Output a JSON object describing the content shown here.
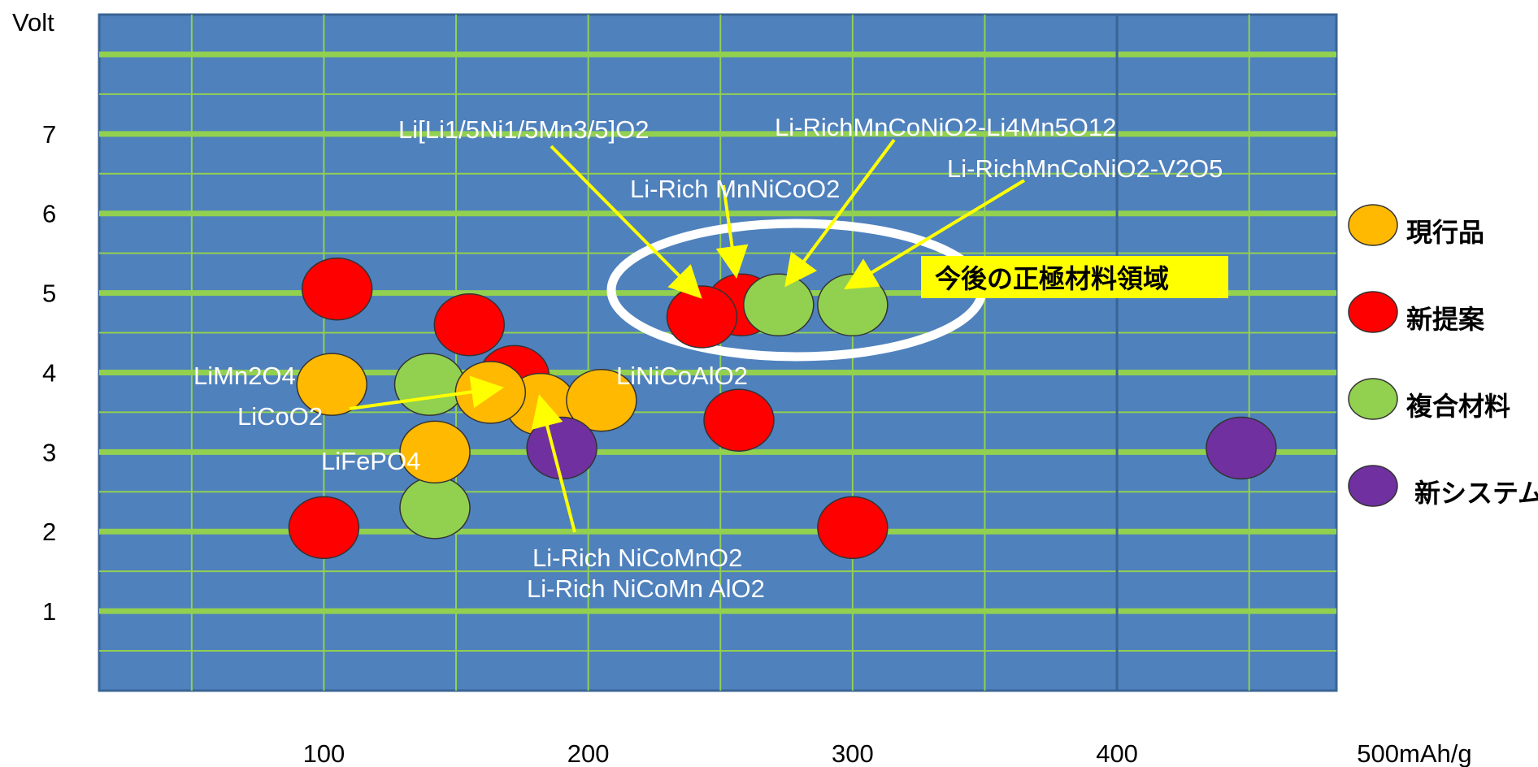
{
  "chart_data": {
    "type": "scatter",
    "ylabel": "Volt",
    "xlabel": "",
    "x_ticks": [
      "100",
      "200",
      "300",
      "400",
      "500mAh/g"
    ],
    "y_ticks": [
      "1",
      "2",
      "3",
      "4",
      "5",
      "6",
      "7"
    ],
    "xlim": [
      15,
      483
    ],
    "ylim": [
      0,
      8.5
    ],
    "grid": true,
    "legend_position": "right",
    "legend": [
      {
        "name": "現行品",
        "color": "#FFB900"
      },
      {
        "name": "新提案",
        "color": "#FF0000"
      },
      {
        "name": "複合材料",
        "color": "#92D050"
      },
      {
        "name": "新システム",
        "color": "#7030A0"
      }
    ],
    "points": [
      {
        "x": 105,
        "y": 5.05,
        "group": "新提案"
      },
      {
        "x": 100,
        "y": 2.05,
        "group": "新提案"
      },
      {
        "x": 155,
        "y": 4.6,
        "group": "新提案"
      },
      {
        "x": 172,
        "y": 3.95,
        "group": "新提案"
      },
      {
        "x": 257,
        "y": 3.4,
        "group": "新提案"
      },
      {
        "x": 300,
        "y": 2.05,
        "group": "新提案"
      },
      {
        "x": 258,
        "y": 4.85,
        "group": "新提案"
      },
      {
        "x": 243,
        "y": 4.7,
        "group": "新提案"
      },
      {
        "x": 272,
        "y": 4.85,
        "group": "複合材料"
      },
      {
        "x": 300,
        "y": 4.85,
        "group": "複合材料"
      },
      {
        "x": 140,
        "y": 3.85,
        "group": "複合材料"
      },
      {
        "x": 142,
        "y": 2.3,
        "group": "複合材料"
      },
      {
        "x": 103,
        "y": 3.85,
        "group": "現行品"
      },
      {
        "x": 182,
        "y": 3.6,
        "group": "現行品"
      },
      {
        "x": 205,
        "y": 3.65,
        "group": "現行品"
      },
      {
        "x": 142,
        "y": 3.0,
        "group": "現行品"
      },
      {
        "x": 163,
        "y": 3.75,
        "group": "現行品"
      },
      {
        "x": 190,
        "y": 3.05,
        "group": "新システム"
      },
      {
        "x": 447,
        "y": 3.05,
        "group": "新システム"
      }
    ],
    "annotations": [
      {
        "text": "LiMn2O4"
      },
      {
        "text": "LiCoO2"
      },
      {
        "text": "LiFePO4"
      },
      {
        "text": "LiNiCoAlO2"
      },
      {
        "text": "Li[Li1/5Ni1/5Mn3/5]O2"
      },
      {
        "text": "Li-Rich MnNiCoO2"
      },
      {
        "text": "Li-RichMnCoNiO2-Li4Mn5O12"
      },
      {
        "text": "Li-RichMnCoNiO2-V2O5"
      },
      {
        "text": "Li-Rich NiCoMnO2"
      },
      {
        "text": "Li-Rich NiCoMn AlO2"
      }
    ],
    "region_label": "今後の正極材料領域"
  },
  "colors": {
    "plot_background": "#4F81BD",
    "grid": "#92D050",
    "arrow": "#FFFF00",
    "ellipse": "#FFFFFF",
    "region_label_background": "#FFFF00"
  }
}
